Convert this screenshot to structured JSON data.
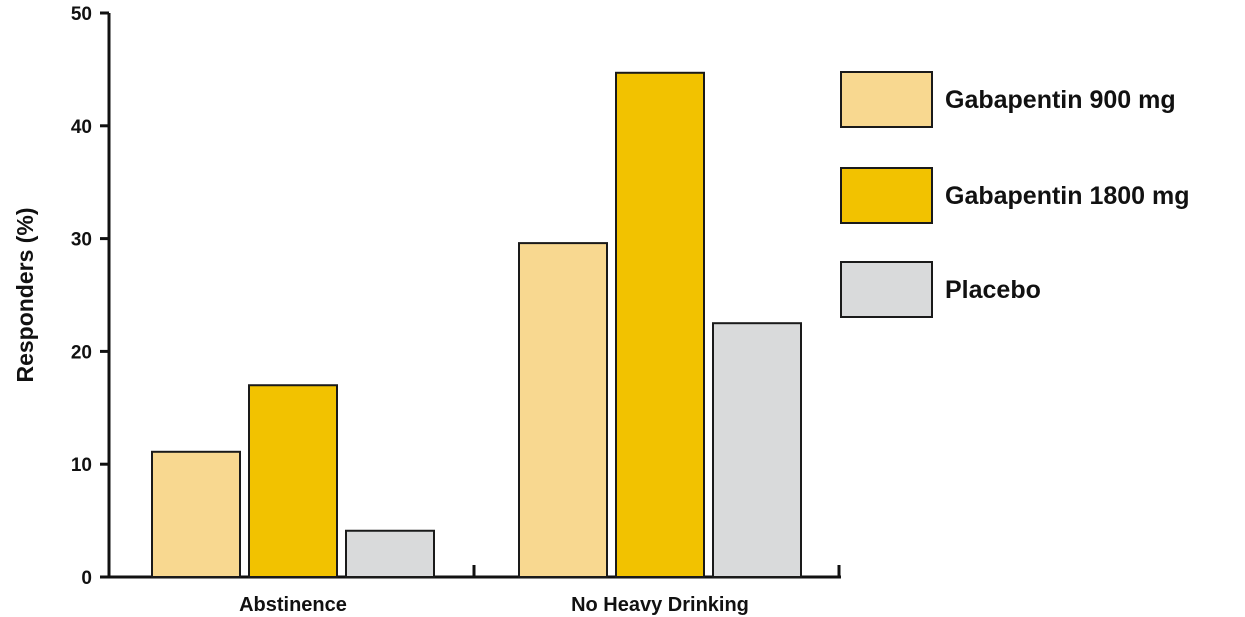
{
  "chart_data": {
    "type": "bar",
    "ylabel": "Responders (%)",
    "xlabel": "",
    "ylim": [
      0,
      50
    ],
    "yticks": [
      0,
      10,
      20,
      30,
      40,
      50
    ],
    "categories": [
      "Abstinence",
      "No Heavy Drinking"
    ],
    "series": [
      {
        "name": "Gabapentin 900 mg",
        "values": [
          11.1,
          29.6
        ],
        "color": "#F8D890"
      },
      {
        "name": "Gabapentin 1800 mg",
        "values": [
          17.0,
          44.7
        ],
        "color": "#F2C200"
      },
      {
        "name": "Placebo",
        "values": [
          4.1,
          22.5
        ],
        "color": "#D9DADB"
      }
    ],
    "legend_position": "right",
    "grid": false
  }
}
